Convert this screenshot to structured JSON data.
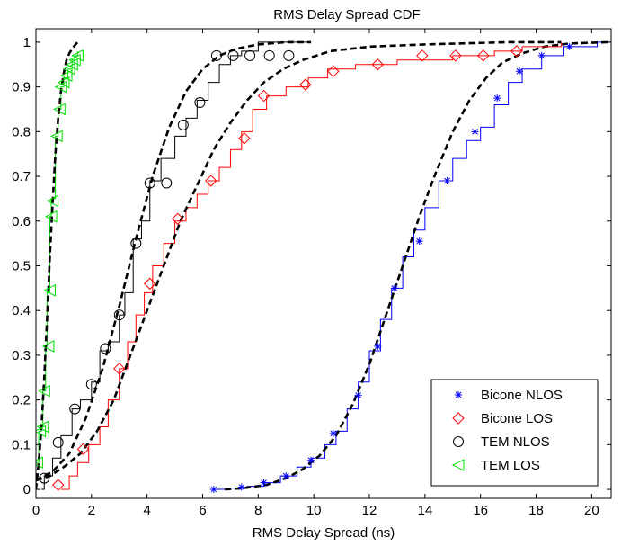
{
  "chart_data": {
    "type": "line",
    "title": "RMS Delay Spread CDF",
    "xlabel": "RMS Delay Spread (ns)",
    "ylabel": "",
    "xlim": [
      0,
      20.7
    ],
    "ylim": [
      -0.02,
      1.03
    ],
    "xticks": [
      0,
      2,
      4,
      6,
      8,
      10,
      12,
      14,
      16,
      18,
      20
    ],
    "yticks": [
      0,
      0.1,
      0.2,
      0.3,
      0.4,
      0.5,
      0.6,
      0.7,
      0.8,
      0.9,
      1
    ],
    "grid": false,
    "legend_position": "bottom-right",
    "series": [
      {
        "name": "Bicone NLOS",
        "color": "#0000ff",
        "marker": "star",
        "step": [
          [
            6.4,
            0
          ],
          [
            7.0,
            0.003
          ],
          [
            7.6,
            0.007
          ],
          [
            8.2,
            0.015
          ],
          [
            8.8,
            0.03
          ],
          [
            9.4,
            0.05
          ],
          [
            9.9,
            0.07
          ],
          [
            10.4,
            0.1
          ],
          [
            10.8,
            0.13
          ],
          [
            11.2,
            0.18
          ],
          [
            11.6,
            0.24
          ],
          [
            12.0,
            0.31
          ],
          [
            12.4,
            0.38
          ],
          [
            12.8,
            0.45
          ],
          [
            13.2,
            0.52
          ],
          [
            13.6,
            0.58
          ],
          [
            14.0,
            0.63
          ],
          [
            14.5,
            0.69
          ],
          [
            15.0,
            0.74
          ],
          [
            15.5,
            0.78
          ],
          [
            16.0,
            0.81
          ],
          [
            16.5,
            0.86
          ],
          [
            17.0,
            0.91
          ],
          [
            17.5,
            0.94
          ],
          [
            18.2,
            0.97
          ],
          [
            19.0,
            0.99
          ],
          [
            20.2,
            1.0
          ],
          [
            20.7,
            1.0
          ]
        ],
        "markers": [
          [
            6.4,
            0
          ],
          [
            7.4,
            0.005
          ],
          [
            8.2,
            0.015
          ],
          [
            9.0,
            0.03
          ],
          [
            9.9,
            0.065
          ],
          [
            10.7,
            0.125
          ],
          [
            11.6,
            0.21
          ],
          [
            12.3,
            0.32
          ],
          [
            12.9,
            0.45
          ],
          [
            13.8,
            0.555
          ],
          [
            14.8,
            0.69
          ],
          [
            15.8,
            0.8
          ],
          [
            16.6,
            0.875
          ],
          [
            17.4,
            0.935
          ],
          [
            18.2,
            0.97
          ],
          [
            19.2,
            0.99
          ]
        ],
        "fit": [
          [
            6.8,
            0
          ],
          [
            7.5,
            0.003
          ],
          [
            8.3,
            0.01
          ],
          [
            9.0,
            0.025
          ],
          [
            9.6,
            0.045
          ],
          [
            10.2,
            0.075
          ],
          [
            10.8,
            0.12
          ],
          [
            11.4,
            0.19
          ],
          [
            12.0,
            0.28
          ],
          [
            12.6,
            0.39
          ],
          [
            13.2,
            0.5
          ],
          [
            13.8,
            0.61
          ],
          [
            14.4,
            0.71
          ],
          [
            15.0,
            0.8
          ],
          [
            15.6,
            0.87
          ],
          [
            16.2,
            0.92
          ],
          [
            16.8,
            0.955
          ],
          [
            17.5,
            0.975
          ],
          [
            18.3,
            0.99
          ],
          [
            19.2,
            0.997
          ],
          [
            20.6,
            1.0
          ]
        ]
      },
      {
        "name": "Bicone LOS",
        "color": "#ff0000",
        "marker": "diamond",
        "step": [
          [
            0.9,
            0
          ],
          [
            1.2,
            0.03
          ],
          [
            1.5,
            0.06
          ],
          [
            1.9,
            0.1
          ],
          [
            2.3,
            0.14
          ],
          [
            2.6,
            0.2
          ],
          [
            3.0,
            0.27
          ],
          [
            3.3,
            0.33
          ],
          [
            3.6,
            0.39
          ],
          [
            3.9,
            0.44
          ],
          [
            4.2,
            0.5
          ],
          [
            4.6,
            0.55
          ],
          [
            5.0,
            0.6
          ],
          [
            5.4,
            0.63
          ],
          [
            5.8,
            0.66
          ],
          [
            6.2,
            0.69
          ],
          [
            6.6,
            0.72
          ],
          [
            7.0,
            0.76
          ],
          [
            7.4,
            0.8
          ],
          [
            7.8,
            0.85
          ],
          [
            8.3,
            0.88
          ],
          [
            9.0,
            0.9
          ],
          [
            9.8,
            0.92
          ],
          [
            10.5,
            0.94
          ],
          [
            11.5,
            0.95
          ],
          [
            13.0,
            0.96
          ],
          [
            15.0,
            0.97
          ],
          [
            16.5,
            0.98
          ],
          [
            17.5,
            0.99
          ],
          [
            18.9,
            1.0
          ]
        ],
        "markers": [
          [
            0.8,
            0.01
          ],
          [
            1.7,
            0.09
          ],
          [
            3.0,
            0.27
          ],
          [
            4.1,
            0.46
          ],
          [
            5.1,
            0.605
          ],
          [
            6.3,
            0.69
          ],
          [
            7.5,
            0.785
          ],
          [
            8.2,
            0.88
          ],
          [
            9.7,
            0.905
          ],
          [
            10.7,
            0.935
          ],
          [
            12.3,
            0.95
          ],
          [
            13.9,
            0.97
          ],
          [
            15.1,
            0.97
          ],
          [
            16.1,
            0.97
          ],
          [
            17.3,
            0.98
          ]
        ],
        "fit": [
          [
            0.0,
            0.02
          ],
          [
            0.5,
            0.03
          ],
          [
            1.0,
            0.05
          ],
          [
            1.6,
            0.08
          ],
          [
            2.2,
            0.13
          ],
          [
            2.8,
            0.2
          ],
          [
            3.4,
            0.3
          ],
          [
            4.0,
            0.4
          ],
          [
            4.6,
            0.5
          ],
          [
            5.2,
            0.6
          ],
          [
            5.8,
            0.68
          ],
          [
            6.4,
            0.76
          ],
          [
            7.0,
            0.82
          ],
          [
            7.6,
            0.87
          ],
          [
            8.2,
            0.91
          ],
          [
            8.9,
            0.94
          ],
          [
            9.6,
            0.96
          ],
          [
            10.6,
            0.98
          ],
          [
            12.0,
            0.99
          ],
          [
            14.0,
            0.995
          ],
          [
            17.0,
            1.0
          ],
          [
            18.9,
            1.0
          ]
        ]
      },
      {
        "name": "TEM NLOS",
        "color": "#000000",
        "marker": "circle",
        "step": [
          [
            0.2,
            0
          ],
          [
            0.3,
            0.03
          ],
          [
            0.6,
            0.07
          ],
          [
            0.9,
            0.12
          ],
          [
            1.3,
            0.18
          ],
          [
            1.6,
            0.2
          ],
          [
            2.0,
            0.24
          ],
          [
            2.3,
            0.31
          ],
          [
            2.6,
            0.33
          ],
          [
            3.0,
            0.39
          ],
          [
            3.2,
            0.44
          ],
          [
            3.5,
            0.56
          ],
          [
            3.8,
            0.6
          ],
          [
            4.1,
            0.69
          ],
          [
            4.5,
            0.74
          ],
          [
            5.0,
            0.79
          ],
          [
            5.4,
            0.83
          ],
          [
            5.8,
            0.87
          ],
          [
            6.2,
            0.91
          ],
          [
            6.6,
            0.95
          ],
          [
            7.0,
            0.97
          ],
          [
            7.4,
            0.98
          ],
          [
            8.0,
            1.0
          ],
          [
            9.9,
            1.0
          ]
        ],
        "markers": [
          [
            0.3,
            0.025
          ],
          [
            0.8,
            0.105
          ],
          [
            1.4,
            0.18
          ],
          [
            2.0,
            0.235
          ],
          [
            2.5,
            0.315
          ],
          [
            3.0,
            0.39
          ],
          [
            3.6,
            0.55
          ],
          [
            4.1,
            0.685
          ],
          [
            4.7,
            0.685
          ],
          [
            5.3,
            0.815
          ],
          [
            5.9,
            0.865
          ],
          [
            6.5,
            0.97
          ],
          [
            7.1,
            0.97
          ],
          [
            7.7,
            0.97
          ],
          [
            8.4,
            0.97
          ],
          [
            9.1,
            0.97
          ]
        ],
        "fit": [
          [
            0.0,
            0.02
          ],
          [
            0.6,
            0.04
          ],
          [
            1.2,
            0.08
          ],
          [
            1.8,
            0.16
          ],
          [
            2.4,
            0.27
          ],
          [
            3.0,
            0.41
          ],
          [
            3.6,
            0.56
          ],
          [
            4.2,
            0.7
          ],
          [
            4.8,
            0.81
          ],
          [
            5.4,
            0.89
          ],
          [
            6.0,
            0.94
          ],
          [
            6.6,
            0.97
          ],
          [
            7.2,
            0.985
          ],
          [
            8.0,
            0.995
          ],
          [
            9.0,
            1.0
          ],
          [
            9.9,
            1.0
          ]
        ]
      },
      {
        "name": "TEM LOS",
        "color": "#00dd00",
        "marker": "triangle-left",
        "step": [
          [
            0.0,
            0.06
          ],
          [
            0.1,
            0.13
          ],
          [
            0.2,
            0.14
          ],
          [
            0.25,
            0.22
          ],
          [
            0.35,
            0.32
          ],
          [
            0.4,
            0.44
          ],
          [
            0.5,
            0.61
          ],
          [
            0.55,
            0.65
          ],
          [
            0.7,
            0.79
          ],
          [
            0.8,
            0.85
          ],
          [
            0.9,
            0.9
          ],
          [
            1.0,
            0.92
          ],
          [
            1.15,
            0.94
          ],
          [
            1.3,
            0.96
          ],
          [
            1.4,
            0.97
          ],
          [
            1.5,
            0.98
          ]
        ],
        "markers": [
          [
            0.05,
            0.06
          ],
          [
            0.15,
            0.13
          ],
          [
            0.25,
            0.14
          ],
          [
            0.3,
            0.22
          ],
          [
            0.45,
            0.32
          ],
          [
            0.5,
            0.445
          ],
          [
            0.55,
            0.61
          ],
          [
            0.6,
            0.645
          ],
          [
            0.75,
            0.79
          ],
          [
            0.85,
            0.85
          ],
          [
            0.9,
            0.9
          ],
          [
            1.0,
            0.91
          ],
          [
            1.1,
            0.925
          ],
          [
            1.2,
            0.94
          ],
          [
            1.3,
            0.95
          ],
          [
            1.4,
            0.96
          ],
          [
            1.5,
            0.97
          ]
        ],
        "fit": [
          [
            0.0,
            0.0
          ],
          [
            0.1,
            0.06
          ],
          [
            0.2,
            0.14
          ],
          [
            0.3,
            0.25
          ],
          [
            0.4,
            0.38
          ],
          [
            0.5,
            0.52
          ],
          [
            0.6,
            0.64
          ],
          [
            0.7,
            0.75
          ],
          [
            0.8,
            0.83
          ],
          [
            0.9,
            0.89
          ],
          [
            1.0,
            0.93
          ],
          [
            1.1,
            0.96
          ],
          [
            1.2,
            0.975
          ],
          [
            1.3,
            0.985
          ],
          [
            1.4,
            0.993
          ],
          [
            1.5,
            1.0
          ]
        ]
      }
    ]
  }
}
